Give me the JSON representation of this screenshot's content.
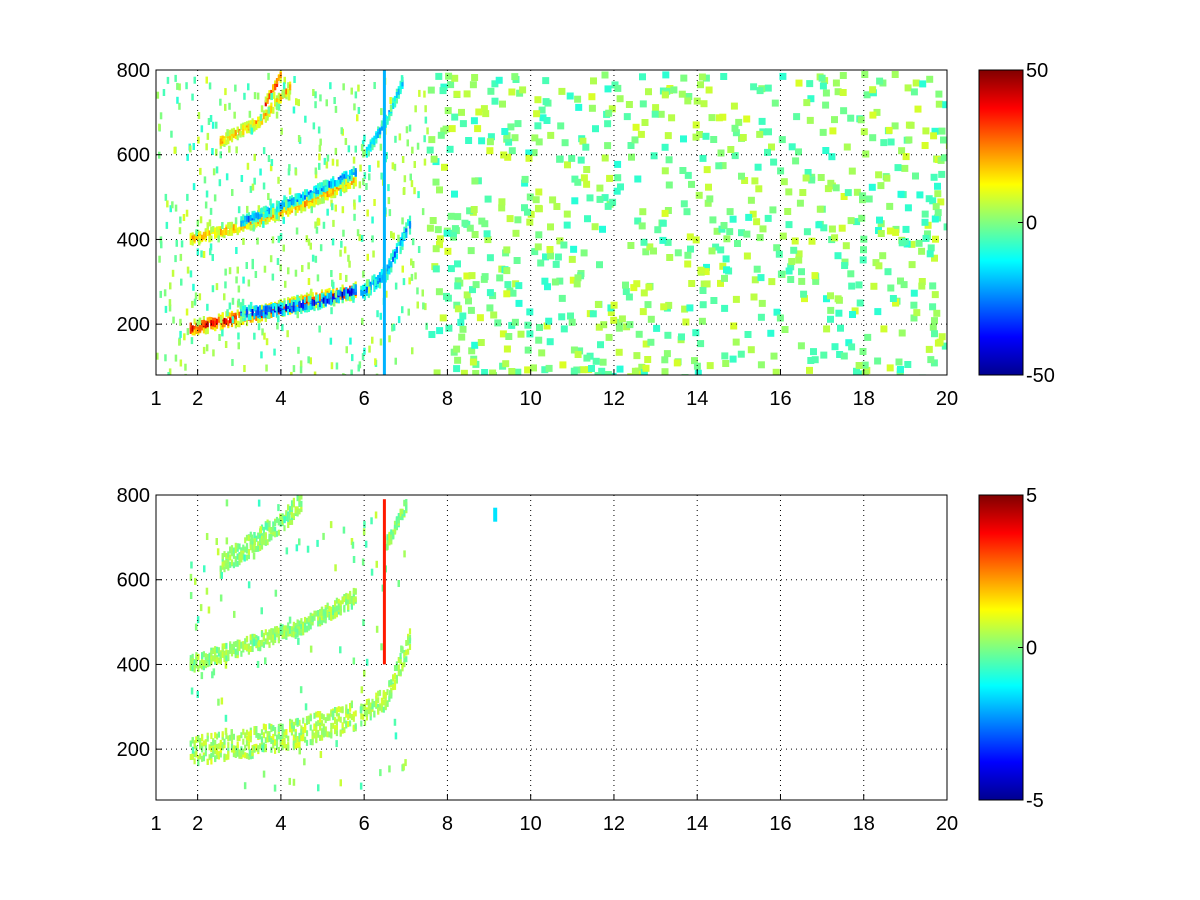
{
  "chart_data": [
    {
      "type": "heatmap",
      "title": "",
      "xlabel": "",
      "ylabel": "",
      "xlim": [
        1,
        20
      ],
      "ylim": [
        80,
        800
      ],
      "x_ticks": [
        1,
        2,
        4,
        6,
        8,
        10,
        12,
        14,
        16,
        18,
        20
      ],
      "x_tick_labels": [
        "1",
        "2",
        "4",
        "6",
        "8",
        "10",
        "12",
        "14",
        "16",
        "18",
        "20"
      ],
      "y_ticks": [
        200,
        400,
        600,
        800
      ],
      "y_tick_labels": [
        "200",
        "400",
        "600",
        "800"
      ],
      "grid": true,
      "colormap": "jet",
      "clim": [
        -50,
        50
      ],
      "colorbar_ticks": [
        50,
        0,
        -50
      ],
      "colorbar_tick_labels": [
        "50",
        "0",
        "-50"
      ],
      "features": [
        {
          "kind": "ridge",
          "x": [
            1.8,
            2.5,
            3.5,
            4.5,
            5.8
          ],
          "y": [
            190,
            205,
            225,
            250,
            280
          ],
          "value": 45,
          "width": 20
        },
        {
          "kind": "ridge",
          "x": [
            3.0,
            4.0,
            5.0,
            5.8
          ],
          "y": [
            225,
            235,
            255,
            280
          ],
          "value": -45,
          "width": 16
        },
        {
          "kind": "ridge",
          "x": [
            5.9,
            6.5,
            7.1
          ],
          "y": [
            270,
            320,
            440
          ],
          "value": -30,
          "width": 22
        },
        {
          "kind": "ridge",
          "x": [
            1.8,
            3.0,
            4.5,
            5.8
          ],
          "y": [
            400,
            430,
            480,
            540
          ],
          "value": 25,
          "width": 14
        },
        {
          "kind": "ridge",
          "x": [
            3.0,
            4.5,
            5.8
          ],
          "y": [
            440,
            500,
            560
          ],
          "value": -30,
          "width": 12
        },
        {
          "kind": "ridge",
          "x": [
            6.0,
            6.5,
            6.9
          ],
          "y": [
            600,
            680,
            770
          ],
          "value": -25,
          "width": 14
        },
        {
          "kind": "ridge",
          "x": [
            2.5,
            3.5,
            4.2
          ],
          "y": [
            630,
            680,
            760
          ],
          "value": 25,
          "width": 14
        },
        {
          "kind": "ridge",
          "x": [
            3.6,
            4.0
          ],
          "y": [
            720,
            790
          ],
          "value": 40,
          "width": 12
        },
        {
          "kind": "line",
          "x": 6.45,
          "y_range": [
            80,
            800
          ],
          "value": -20
        }
      ]
    },
    {
      "type": "heatmap",
      "title": "",
      "xlabel": "",
      "ylabel": "",
      "xlim": [
        1,
        20
      ],
      "ylim": [
        80,
        800
      ],
      "x_ticks": [
        1,
        2,
        4,
        6,
        8,
        10,
        12,
        14,
        16,
        18,
        20
      ],
      "x_tick_labels": [
        "1",
        "2",
        "4",
        "6",
        "8",
        "10",
        "12",
        "14",
        "16",
        "18",
        "20"
      ],
      "y_ticks": [
        200,
        400,
        600,
        800
      ],
      "y_tick_labels": [
        "200",
        "400",
        "600",
        "800"
      ],
      "grid": true,
      "colormap": "jet",
      "clim": [
        -5,
        5
      ],
      "colorbar_ticks": [
        5,
        0,
        -5
      ],
      "colorbar_tick_labels": [
        "5",
        "0",
        "-5"
      ],
      "features": [
        {
          "kind": "band",
          "x": [
            1.8,
            3.0,
            4.5,
            5.8
          ],
          "y": [
            195,
            210,
            240,
            280
          ],
          "value": 0.4,
          "width": 40
        },
        {
          "kind": "band",
          "x": [
            5.9,
            6.5,
            7.1
          ],
          "y": [
            280,
            320,
            460
          ],
          "value": 0.3,
          "width": 30
        },
        {
          "kind": "band",
          "x": [
            1.8,
            3.0,
            4.5,
            5.8
          ],
          "y": [
            400,
            440,
            490,
            560
          ],
          "value": 0.2,
          "width": 22
        },
        {
          "kind": "band",
          "x": [
            2.5,
            3.5,
            4.5
          ],
          "y": [
            630,
            700,
            780
          ],
          "value": 0.1,
          "width": 30
        },
        {
          "kind": "band",
          "x": [
            6.5,
            7.0
          ],
          "y": [
            680,
            780
          ],
          "value": 0.1,
          "width": 20
        },
        {
          "kind": "line",
          "x": 6.45,
          "y_range": [
            400,
            790
          ],
          "value": 3.5
        },
        {
          "kind": "patch",
          "x": 9.1,
          "y": 770,
          "value": -1.5
        }
      ]
    }
  ]
}
